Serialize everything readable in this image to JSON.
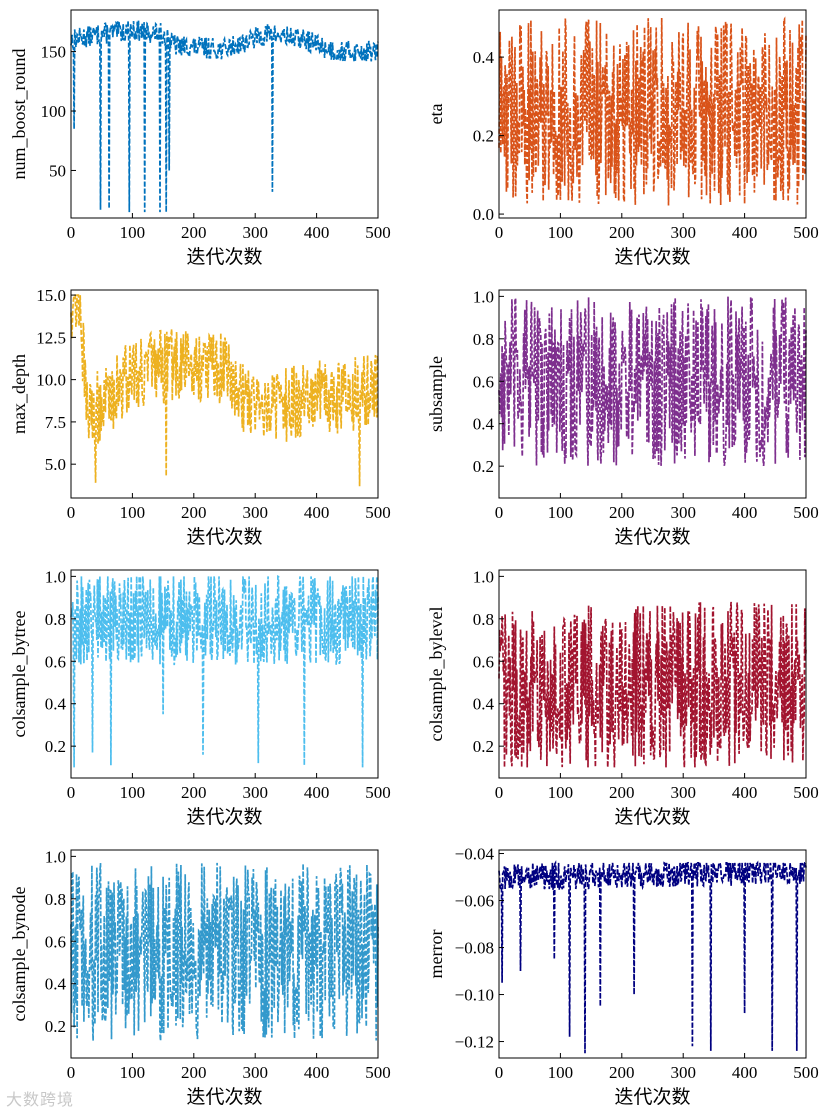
{
  "chart_data": [
    {
      "type": "line",
      "ylabel": "num_boost_round",
      "xlabel": "迭代次数",
      "color": "#0072bd",
      "xlim": [
        0,
        500
      ],
      "ylim": [
        10,
        185
      ],
      "xticks": [
        0,
        100,
        200,
        300,
        400,
        500
      ],
      "yticks": [
        50,
        100,
        150
      ],
      "ytick_labels": [
        "50",
        "100",
        "150"
      ],
      "profile": {
        "base": [
          [
            0,
            160
          ],
          [
            50,
            165
          ],
          [
            100,
            168
          ],
          [
            150,
            165
          ],
          [
            170,
            155
          ],
          [
            250,
            152
          ],
          [
            320,
            165
          ],
          [
            380,
            160
          ],
          [
            430,
            150
          ],
          [
            500,
            150
          ]
        ],
        "jitter": 9,
        "spikes": [
          [
            5,
            85
          ],
          [
            48,
            17
          ],
          [
            62,
            18
          ],
          [
            95,
            15
          ],
          [
            120,
            15
          ],
          [
            145,
            15
          ],
          [
            155,
            15
          ],
          [
            160,
            50
          ],
          [
            328,
            32
          ]
        ]
      }
    },
    {
      "type": "line",
      "ylabel": "eta",
      "xlabel": "迭代次数",
      "color": "#d95319",
      "xlim": [
        0,
        500
      ],
      "ylim": [
        -0.01,
        0.52
      ],
      "xticks": [
        0,
        100,
        200,
        300,
        400,
        500
      ],
      "yticks": [
        0.0,
        0.2,
        0.4
      ],
      "ytick_labels": [
        "0.0",
        "0.2",
        "0.4"
      ],
      "profile": {
        "base": [
          [
            0,
            0.26
          ],
          [
            500,
            0.26
          ]
        ],
        "jitter": 0.24,
        "clip": [
          0.01,
          0.5
        ],
        "spikes": []
      }
    },
    {
      "type": "line",
      "ylabel": "max_depth",
      "xlabel": "迭代次数",
      "color": "#edb120",
      "xlim": [
        0,
        500
      ],
      "ylim": [
        3,
        15.3
      ],
      "xticks": [
        0,
        100,
        200,
        300,
        400,
        500
      ],
      "yticks": [
        5.0,
        7.5,
        10.0,
        12.5,
        15.0
      ],
      "ytick_labels": [
        "5.0",
        "7.5",
        "10.0",
        "12.5",
        "15.0"
      ],
      "profile": {
        "base": [
          [
            0,
            14.5
          ],
          [
            15,
            14.8
          ],
          [
            25,
            8
          ],
          [
            50,
            8.5
          ],
          [
            100,
            10.5
          ],
          [
            200,
            11
          ],
          [
            260,
            10.5
          ],
          [
            280,
            9
          ],
          [
            350,
            8.5
          ],
          [
            400,
            9
          ],
          [
            450,
            9
          ],
          [
            500,
            9.5
          ]
        ],
        "jitter": 2.2,
        "clip": [
          3.7,
          15
        ],
        "spikes": [
          [
            40,
            3.9
          ],
          [
            155,
            4.3
          ],
          [
            470,
            3.7
          ]
        ]
      }
    },
    {
      "type": "line",
      "ylabel": "subsample",
      "xlabel": "迭代次数",
      "color": "#7e2f8e",
      "xlim": [
        0,
        500
      ],
      "ylim": [
        0.05,
        1.03
      ],
      "xticks": [
        0,
        100,
        200,
        300,
        400,
        500
      ],
      "yticks": [
        0.2,
        0.4,
        0.6,
        0.8,
        1.0
      ],
      "ytick_labels": [
        "0.2",
        "0.4",
        "0.6",
        "0.8",
        "1.0"
      ],
      "profile": {
        "base": [
          [
            0,
            0.6
          ],
          [
            500,
            0.6
          ]
        ],
        "jitter": 0.4,
        "clip": [
          0.1,
          1.0
        ],
        "spikes": []
      }
    },
    {
      "type": "line",
      "ylabel": "colsample_bytree",
      "xlabel": "迭代次数",
      "color": "#4dbeee",
      "xlim": [
        0,
        500
      ],
      "ylim": [
        0.05,
        1.03
      ],
      "xticks": [
        0,
        100,
        200,
        300,
        400,
        500
      ],
      "yticks": [
        0.2,
        0.4,
        0.6,
        0.8,
        1.0
      ],
      "ytick_labels": [
        "0.2",
        "0.4",
        "0.6",
        "0.8",
        "1.0"
      ],
      "profile": {
        "base": [
          [
            0,
            0.8
          ],
          [
            500,
            0.8
          ]
        ],
        "jitter": 0.22,
        "clip": [
          0.1,
          1.0
        ],
        "spikes": [
          [
            5,
            0.1
          ],
          [
            35,
            0.17
          ],
          [
            65,
            0.11
          ],
          [
            150,
            0.35
          ],
          [
            215,
            0.16
          ],
          [
            305,
            0.12
          ],
          [
            380,
            0.11
          ],
          [
            475,
            0.1
          ]
        ]
      }
    },
    {
      "type": "line",
      "ylabel": "colsample_bylevel",
      "xlabel": "迭代次数",
      "color": "#a2142f",
      "xlim": [
        0,
        500
      ],
      "ylim": [
        0.05,
        1.03
      ],
      "xticks": [
        0,
        100,
        200,
        300,
        400,
        500
      ],
      "yticks": [
        0.2,
        0.4,
        0.6,
        0.8,
        1.0
      ],
      "ytick_labels": [
        "0.2",
        "0.4",
        "0.6",
        "0.8",
        "1.0"
      ],
      "profile": {
        "base": [
          [
            0,
            0.45
          ],
          [
            500,
            0.5
          ]
        ],
        "jitter": 0.4,
        "clip": [
          0.1,
          1.0
        ],
        "spikes": []
      }
    },
    {
      "type": "line",
      "ylabel": "colsample_bynode",
      "xlabel": "迭代次数",
      "color": "#3399cc",
      "xlim": [
        0,
        500
      ],
      "ylim": [
        0.05,
        1.03
      ],
      "xticks": [
        0,
        100,
        200,
        300,
        400,
        500
      ],
      "yticks": [
        0.2,
        0.4,
        0.6,
        0.8,
        1.0
      ],
      "ytick_labels": [
        "0.2",
        "0.4",
        "0.6",
        "0.8",
        "1.0"
      ],
      "profile": {
        "base": [
          [
            0,
            0.55
          ],
          [
            500,
            0.55
          ]
        ],
        "jitter": 0.42,
        "clip": [
          0.1,
          1.0
        ],
        "spikes": []
      }
    },
    {
      "type": "line",
      "ylabel": "merror",
      "xlabel": "迭代次数",
      "color": "#000080",
      "xlim": [
        0,
        500
      ],
      "ylim": [
        -0.127,
        -0.0385
      ],
      "xticks": [
        0,
        100,
        200,
        300,
        400,
        500
      ],
      "yticks": [
        -0.12,
        -0.1,
        -0.08,
        -0.06,
        -0.04
      ],
      "ytick_labels": [
        "−0.12",
        "−0.10",
        "−0.08",
        "−0.06",
        "−0.04"
      ],
      "profile": {
        "base": [
          [
            0,
            -0.05
          ],
          [
            500,
            -0.047
          ]
        ],
        "jitter": 0.006,
        "clip": [
          -0.125,
          -0.044
        ],
        "spikes": [
          [
            5,
            -0.095
          ],
          [
            35,
            -0.09
          ],
          [
            90,
            -0.085
          ],
          [
            115,
            -0.118
          ],
          [
            140,
            -0.125
          ],
          [
            165,
            -0.105
          ],
          [
            220,
            -0.1
          ],
          [
            315,
            -0.122
          ],
          [
            345,
            -0.124
          ],
          [
            400,
            -0.108
          ],
          [
            445,
            -0.124
          ],
          [
            485,
            -0.124
          ]
        ]
      }
    }
  ],
  "watermark": "大数跨境"
}
